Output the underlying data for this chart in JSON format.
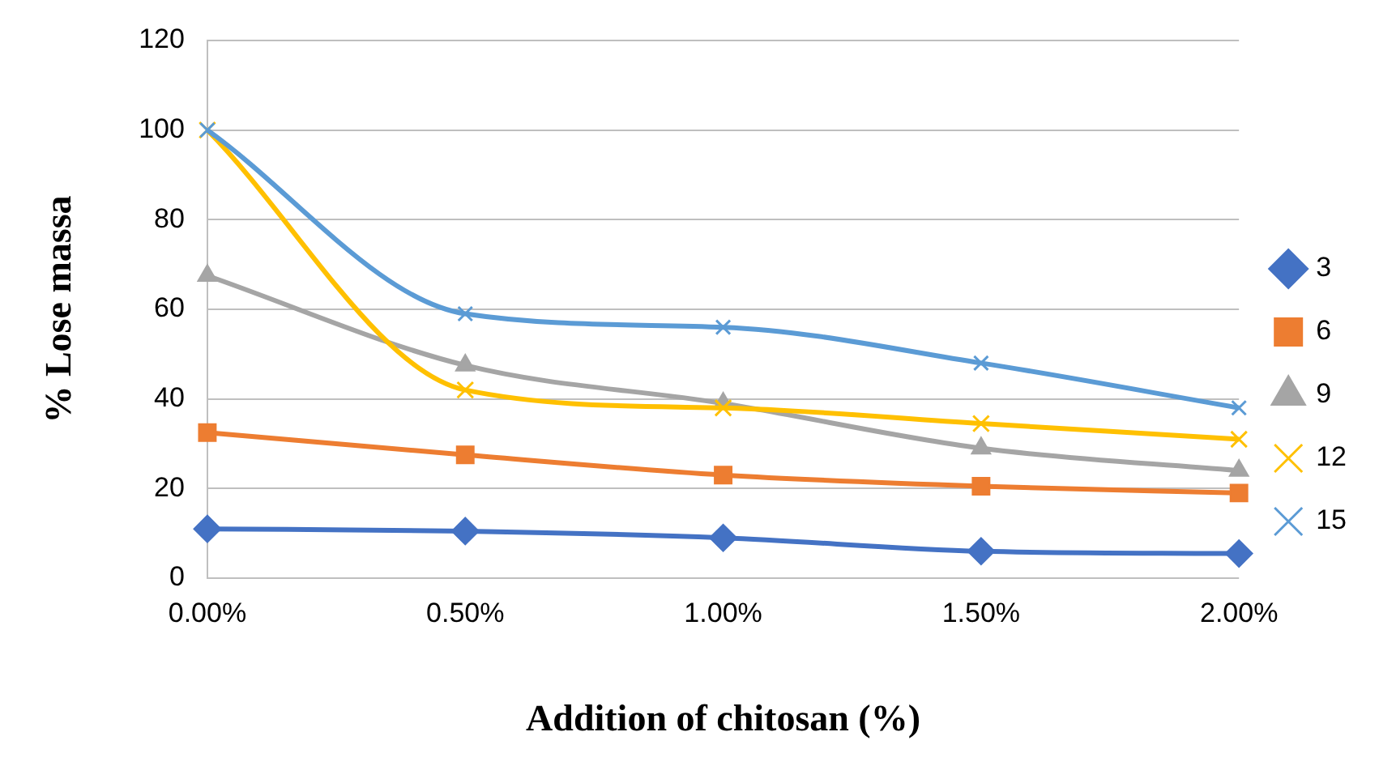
{
  "chart_data": {
    "type": "line",
    "xlabel": "Addition of chitosan (%)",
    "ylabel": "% Lose massa",
    "categories": [
      "0.00%",
      "0.50%",
      "1.00%",
      "1.50%",
      "2.00%"
    ],
    "series": [
      {
        "name": "3",
        "color": "#4472c4",
        "marker": "diamond",
        "values": [
          11,
          10.5,
          9,
          6,
          5.5
        ]
      },
      {
        "name": "6",
        "color": "#ed7d31",
        "marker": "square",
        "values": [
          32.5,
          27.5,
          23,
          20.5,
          19
        ]
      },
      {
        "name": "9",
        "color": "#a5a5a5",
        "marker": "triangle",
        "values": [
          67.5,
          47.5,
          39,
          29,
          24
        ]
      },
      {
        "name": "12",
        "color": "#ffc000",
        "marker": "cross",
        "values": [
          100,
          42,
          38,
          34.5,
          31
        ]
      },
      {
        "name": "15",
        "color": "#5b9bd5",
        "marker": "cross",
        "values": [
          100,
          59,
          56,
          48,
          38
        ]
      }
    ],
    "ylim": [
      0,
      120
    ],
    "yticks": [
      0,
      20,
      40,
      60,
      80,
      100,
      120
    ],
    "grid": "y",
    "legend": "right",
    "line_style": "solid"
  }
}
